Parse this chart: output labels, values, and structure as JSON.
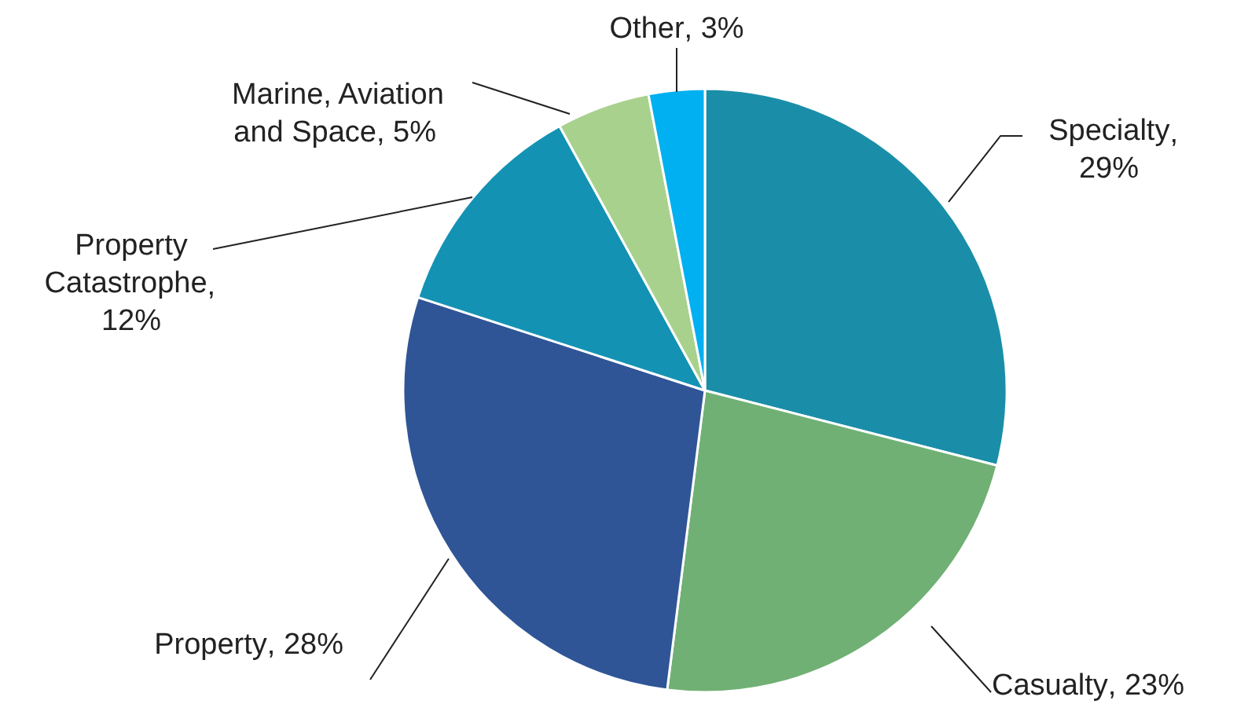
{
  "chart_data": {
    "type": "pie",
    "categories": [
      "Specialty",
      "Casualty",
      "Property",
      "Property Catastrophe",
      "Marine, Aviation and Space",
      "Other"
    ],
    "values": [
      29,
      23,
      28,
      12,
      5,
      3
    ],
    "colors": [
      "#1a8ea8",
      "#70b074",
      "#2f5597",
      "#1492b4",
      "#a9d18e",
      "#00b0f0"
    ],
    "value_labels": [
      ", 29%",
      ", 23%",
      ", 28%",
      ", 12%",
      ", 5%",
      ", 3%"
    ],
    "legend": false
  }
}
